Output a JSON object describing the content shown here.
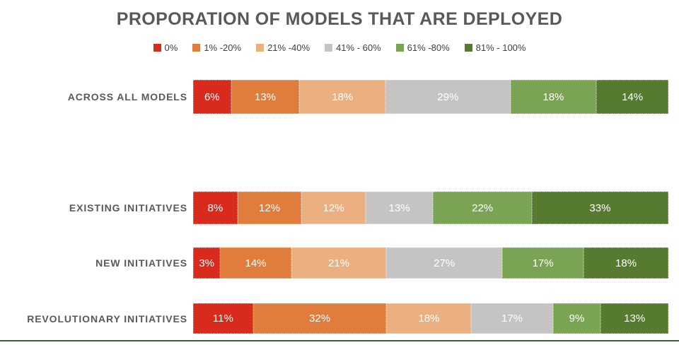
{
  "title": "PROPORATION OF MODELS THAT ARE DEPLOYED",
  "chart_data": {
    "type": "bar",
    "variant": "horizontal-stacked-100-percent",
    "title": "PROPORATION OF MODELS THAT ARE DEPLOYED",
    "legend_position": "top-center",
    "grid": false,
    "value_suffix": "%",
    "axis_range": [
      0,
      100
    ],
    "categories": [
      "ACROSS ALL MODELS",
      "EXISTING INITIATIVES",
      "NEW INITIATIVES",
      "REVOLUTIONARY INITIATIVES"
    ],
    "series": [
      {
        "name": "0%",
        "color": "#d92b1d",
        "values": [
          6,
          8,
          3,
          11
        ]
      },
      {
        "name": "1% -20%",
        "color": "#e07c3c",
        "values": [
          13,
          12,
          14,
          32
        ]
      },
      {
        "name": "21% -40%",
        "color": "#ecaf80",
        "values": [
          18,
          12,
          21,
          18
        ]
      },
      {
        "name": "41% - 60%",
        "color": "#c5c4c3",
        "values": [
          29,
          13,
          27,
          17
        ]
      },
      {
        "name": "61% -80%",
        "color": "#7aa453",
        "values": [
          18,
          22,
          17,
          9
        ]
      },
      {
        "name": "81% - 100%",
        "color": "#567a30",
        "values": [
          14,
          33,
          18,
          13
        ]
      }
    ]
  },
  "colors": {
    "title_text": "#595959",
    "category_text": "#595959",
    "legend_text": "#404040",
    "bar_value_text": "#ffffff",
    "bottom_rule": "#3e5a38"
  }
}
